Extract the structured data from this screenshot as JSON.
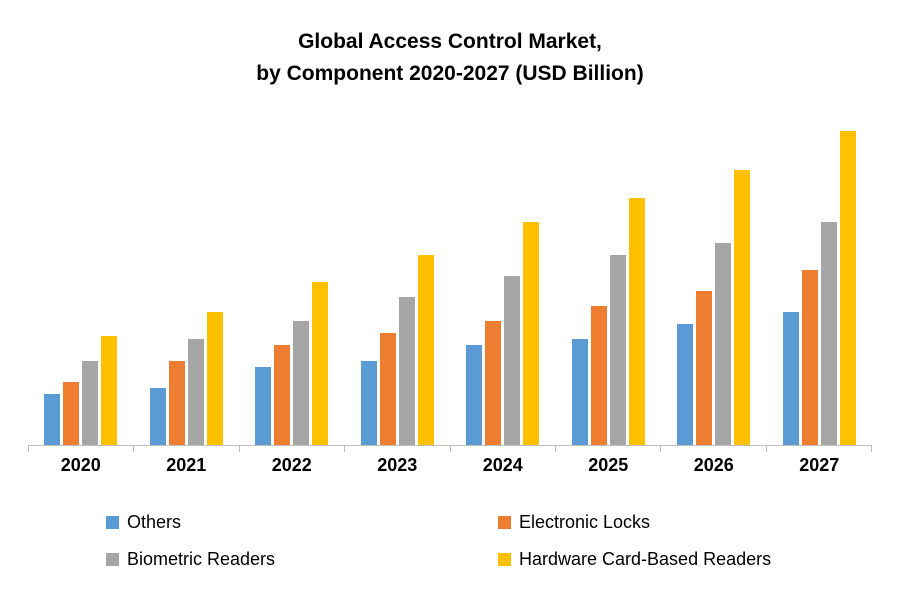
{
  "title": {
    "line1": "Global Access Control Market,",
    "line2": "by Component 2020-2027 (USD Billion)"
  },
  "chart_data": {
    "type": "bar",
    "title": "Global Access Control Market, by Component 2020-2027 (USD Billion)",
    "categories": [
      "2020",
      "2021",
      "2022",
      "2023",
      "2024",
      "2025",
      "2026",
      "2027"
    ],
    "series": [
      {
        "name": "Others",
        "color": "#5B9BD5",
        "values": [
          1.7,
          1.9,
          2.6,
          2.8,
          3.3,
          3.5,
          4.0,
          4.4
        ]
      },
      {
        "name": "Electronic Locks",
        "color": "#ED7D31",
        "values": [
          2.1,
          2.8,
          3.3,
          3.7,
          4.1,
          4.6,
          5.1,
          5.8
        ]
      },
      {
        "name": "Biometric Readers",
        "color": "#A6A6A6",
        "values": [
          2.8,
          3.5,
          4.1,
          4.9,
          5.6,
          6.3,
          6.7,
          7.4
        ]
      },
      {
        "name": "Hardware Card-Based Readers",
        "color": "#FFC000",
        "values": [
          3.6,
          4.4,
          5.4,
          6.3,
          7.4,
          8.2,
          9.1,
          10.4
        ]
      }
    ],
    "xlabel": "",
    "ylabel": "",
    "ylim": [
      0,
      11
    ],
    "grid": false,
    "y_axis_labels_visible": false,
    "legend_position": "bottom",
    "axis_color": "#BFBFBF"
  }
}
